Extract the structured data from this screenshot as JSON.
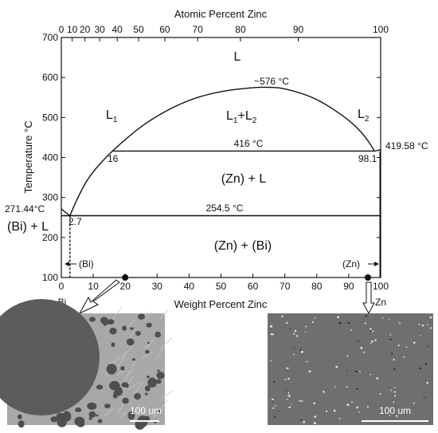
{
  "top_axis": {
    "title": "Atomic Percent Zinc",
    "ticks": [
      {
        "label": "0",
        "wt": 0
      },
      {
        "label": "10",
        "wt": 3.4
      },
      {
        "label": "20",
        "wt": 7.4
      },
      {
        "label": "30",
        "wt": 12.0
      },
      {
        "label": "40",
        "wt": 17.5
      },
      {
        "label": "50",
        "wt": 24.2
      },
      {
        "label": "60",
        "wt": 32.4
      },
      {
        "label": "70",
        "wt": 42.7
      },
      {
        "label": "80",
        "wt": 56.1
      },
      {
        "label": "90",
        "wt": 74.2
      },
      {
        "label": "100",
        "wt": 100
      }
    ]
  },
  "bottom_axis": {
    "title": "Weight Percent Zinc",
    "ticks": [
      "0",
      "10",
      "20",
      "30",
      "40",
      "50",
      "60",
      "70",
      "80",
      "90",
      "100"
    ],
    "left_element": "Bi",
    "right_element": "Zn"
  },
  "y_axis": {
    "title": "Temperature °C",
    "ticks": [
      "100",
      "200",
      "300",
      "400",
      "500",
      "600",
      "700"
    ],
    "range": [
      100,
      700
    ]
  },
  "curves": {
    "liquidus_left": [
      [
        0,
        271.44
      ],
      [
        2.7,
        254.5
      ],
      [
        5,
        300
      ],
      [
        10,
        370
      ],
      [
        16,
        416
      ]
    ],
    "miscibility_gap": [
      [
        16,
        416
      ],
      [
        22,
        460
      ],
      [
        30,
        505
      ],
      [
        40,
        545
      ],
      [
        50,
        566
      ],
      [
        60,
        575
      ],
      [
        65,
        576
      ],
      [
        70,
        573
      ],
      [
        80,
        548
      ],
      [
        90,
        495
      ],
      [
        95,
        455
      ],
      [
        98.1,
        416
      ]
    ],
    "liquidus_right": [
      [
        98.1,
        416
      ],
      [
        100,
        419.58
      ]
    ],
    "monotectic_line": {
      "x": [
        16,
        98.1
      ],
      "t": 416
    },
    "eutectic_line": {
      "x": [
        0,
        100
      ],
      "t": 254.5
    },
    "solvus_bi": {
      "x": 2.7
    },
    "solvus_zn": {
      "x": 99.8
    }
  },
  "labels": {
    "liquid": "L",
    "l1": "L",
    "l1_sub": "1",
    "l2": "L",
    "l2_sub": "2",
    "l1l2_a": "L",
    "l1l2_a_sub": "1",
    "l1l2_plus": "+L",
    "l1l2_b_sub": "2",
    "zn_l": "(Zn) + L",
    "bi_l": "(Bi) + L",
    "zn_bi": "(Zn) + (Bi)",
    "bi_region": "(Bi)",
    "zn_region": "(Zn)",
    "critical_temp": "~576 °C",
    "monotectic_temp": "416 °C",
    "eutectic_temp": "254.5 °C",
    "bi_melt": "271.44°C",
    "zn_melt": "419.58 °C",
    "comp_16": "16",
    "comp_981": "98.1",
    "comp_27": "2.7"
  },
  "markers": [
    {
      "wt": 20,
      "t": 100
    },
    {
      "wt": 96,
      "t": 100
    }
  ],
  "micrographs": [
    {
      "scale": "100 um",
      "tone": "two-phase"
    },
    {
      "scale": "100 um",
      "tone": "dispersed"
    }
  ],
  "colors": {
    "line": "#111111",
    "micro_dark": "#5a5a5a",
    "micro_light": "#a9a9a9",
    "micro_right": "#6d6d6d"
  }
}
